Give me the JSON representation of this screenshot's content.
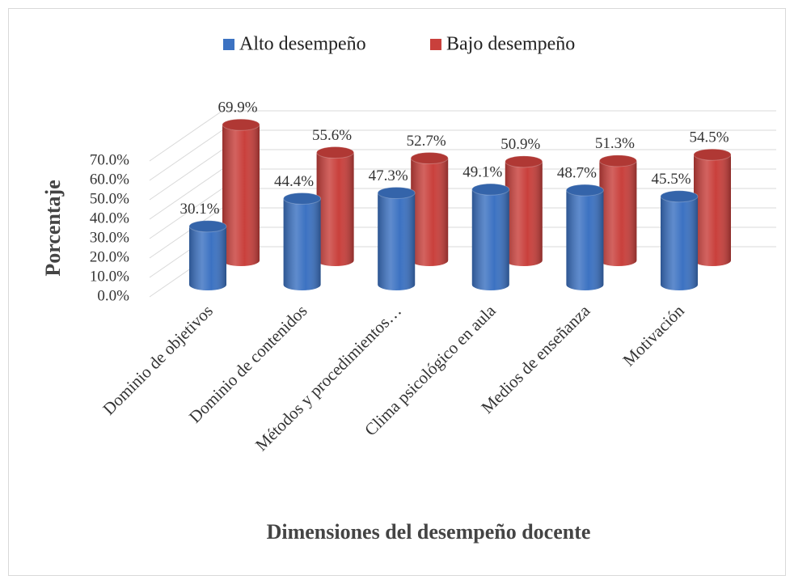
{
  "chart_data": {
    "type": "bar3d",
    "xlabel": "Dimensiones del desempeño docente",
    "ylabel": "Porcentaje",
    "categories": [
      "Dominio de objetivos",
      "Dominio de contenidos",
      "Métodos y procedimientos…",
      "Clima psicológico en aula",
      "Medios de enseñanza",
      "Motivación"
    ],
    "series": [
      {
        "name": "Alto desempeño",
        "color": "#3c72c2",
        "values": [
          30.1,
          44.4,
          47.3,
          49.1,
          48.7,
          45.5
        ],
        "value_labels": [
          "30.1%",
          "44.4%",
          "47.3%",
          "49.1%",
          "48.7%",
          "45.5%"
        ]
      },
      {
        "name": "Bajo desempeño",
        "color": "#c9403c",
        "values": [
          69.9,
          55.6,
          52.7,
          50.9,
          51.3,
          54.5
        ],
        "value_labels": [
          "69.9%",
          "55.6%",
          "52.7%",
          "50.9%",
          "51.3%",
          "54.5%"
        ]
      }
    ],
    "ylim": [
      0,
      70
    ],
    "yticks": [
      {
        "value": 0,
        "label": "0.0%"
      },
      {
        "value": 10,
        "label": "10.0%"
      },
      {
        "value": 20,
        "label": "20.0%"
      },
      {
        "value": 30,
        "label": "30.0%"
      },
      {
        "value": 40,
        "label": "40.0%"
      },
      {
        "value": 50,
        "label": "50.0%"
      },
      {
        "value": 60,
        "label": "60.0%"
      },
      {
        "value": 70,
        "label": "70.0%"
      }
    ],
    "grid": true,
    "legend": "top"
  }
}
